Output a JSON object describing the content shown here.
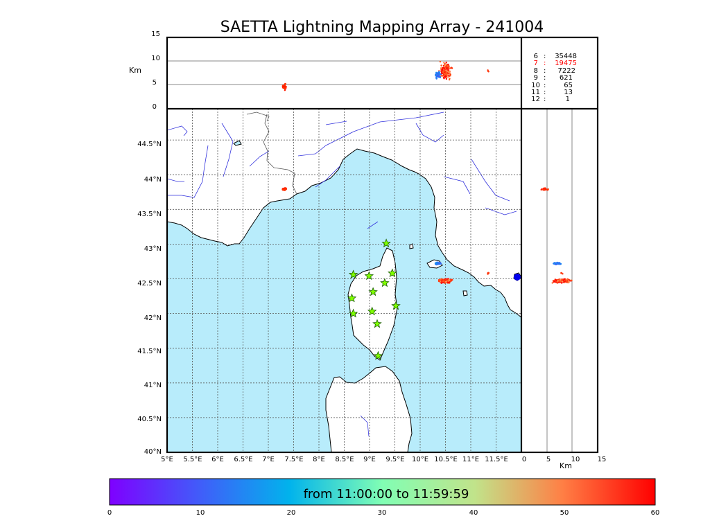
{
  "title": "SAETTA Lightning Mapping Array - 241004",
  "altitude_axis": {
    "unit_label": "Km",
    "top_ticks": [
      "15",
      "10",
      "5",
      "0"
    ],
    "bottom_ticks": [
      "0",
      "5",
      "10",
      "15"
    ]
  },
  "map": {
    "lat_ticks": [
      "44.5°N",
      "44°N",
      "43.5°N",
      "43°N",
      "42.5°N",
      "42°N",
      "41.5°N",
      "41°N",
      "40.5°N",
      "40°N"
    ],
    "lon_ticks": [
      "5°E",
      "5.5°E",
      "6°E",
      "6.5°E",
      "7°E",
      "7.5°E",
      "8°E",
      "8.5°E",
      "9°E",
      "9.5°E",
      "10°E",
      "10.5°E",
      "11°E",
      "11.5°E"
    ],
    "sea_color": "#b8ecfb",
    "land_color": "#ffffff",
    "river_color": "#3333dd",
    "station_color": "#7fff00",
    "lon_range": [
      5,
      12
    ],
    "lat_range": [
      40,
      44.95
    ]
  },
  "station_counts": [
    {
      "stations": "6",
      "count": "35448",
      "color": "#000000"
    },
    {
      "stations": "7",
      "count": "19475",
      "color": "#ff0000"
    },
    {
      "stations": "8",
      "count": "7222",
      "color": "#000000"
    },
    {
      "stations": "9",
      "count": "621",
      "color": "#000000"
    },
    {
      "stations": "10",
      "count": "65",
      "color": "#000000"
    },
    {
      "stations": "11",
      "count": "13",
      "color": "#000000"
    },
    {
      "stations": "12",
      "count": "1",
      "color": "#000000"
    }
  ],
  "colorbar": {
    "label": "from 11:00:00 to 11:59:59",
    "ticks": [
      "0",
      "10",
      "20",
      "30",
      "40",
      "50",
      "60"
    ],
    "range": [
      0,
      60
    ]
  },
  "stations": [
    {
      "lon": 9.33,
      "lat": 43.01
    },
    {
      "lon": 8.68,
      "lat": 42.56
    },
    {
      "lon": 8.99,
      "lat": 42.54
    },
    {
      "lon": 9.45,
      "lat": 42.58
    },
    {
      "lon": 9.3,
      "lat": 42.44
    },
    {
      "lon": 9.07,
      "lat": 42.31
    },
    {
      "lon": 8.65,
      "lat": 42.22
    },
    {
      "lon": 8.68,
      "lat": 42.0
    },
    {
      "lon": 9.05,
      "lat": 42.03
    },
    {
      "lon": 9.52,
      "lat": 42.11
    },
    {
      "lon": 9.15,
      "lat": 41.85
    },
    {
      "lon": 9.17,
      "lat": 41.39
    }
  ]
}
